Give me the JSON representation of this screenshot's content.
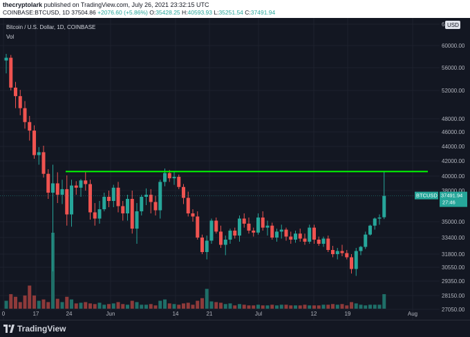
{
  "header": {
    "publisher": "thecryptolark",
    "published_text": "published on TradingView.com, July 26, 2021 23:32:15 UTC",
    "symbol": "COINBASE:BTCUSD,",
    "interval": "1D",
    "last": "37504.86",
    "change": "+2076.60 (+5.86%)",
    "o_label": "O:",
    "o_value": "35428.25",
    "h_label": "H:",
    "h_value": "40593.93",
    "l_label": "L:",
    "l_value": "35251.54",
    "c_label": "C:",
    "c_value": "37491.94"
  },
  "legend": {
    "title": "Bitcoin / U.S. Dollar, 1D, COINBASE",
    "vol_label": "Vol"
  },
  "currency_button": "USD",
  "price_tag": {
    "symbol": "BTCUSD",
    "price": "37491.94",
    "countdown": "27:46"
  },
  "footer": {
    "brand": "TradingView"
  },
  "colors": {
    "up": "#26a69a",
    "down": "#ef5350",
    "resistance": "#00ff00",
    "background": "#131722",
    "grid": "#1e222d"
  },
  "chart_data": {
    "type": "candlestick",
    "y_axis_ticks": [
      64000,
      60000,
      56000,
      52000,
      48000,
      46000,
      44000,
      42000,
      40000,
      38000,
      35000,
      33400,
      31800,
      30550,
      29350,
      28150,
      27050
    ],
    "y_axis_labels": [
      "64000.00",
      "60000.00",
      "56000.00",
      "52000.00",
      "48000.00",
      "46000.00",
      "44000.00",
      "42000.00",
      "40000.00",
      "38000.00",
      "35000.00",
      "33400.00",
      "31800.00",
      "30550.00",
      "29350.00",
      "28150.00",
      "27050.00"
    ],
    "x_axis_labels": [
      "0",
      "17",
      "24",
      "Jun",
      "14",
      "21",
      "Jul",
      "12",
      "19",
      "Aug"
    ],
    "resistance_level": 40600,
    "last_price": 37491.94,
    "candles": [
      [
        57300,
        58500,
        55000,
        57800
      ],
      [
        57800,
        58300,
        52000,
        52500
      ],
      [
        52500,
        53500,
        49500,
        51200
      ],
      [
        51200,
        52100,
        48500,
        49500
      ],
      [
        49500,
        50500,
        46500,
        47500
      ],
      [
        47500,
        48400,
        44800,
        46200
      ],
      [
        46200,
        47000,
        42300,
        42800
      ],
      [
        42800,
        43900,
        41500,
        43200
      ],
      [
        43200,
        44100,
        39800,
        40300
      ],
      [
        40300,
        40900,
        37200,
        37800
      ],
      [
        37800,
        41500,
        30200,
        39000
      ],
      [
        39000,
        40500,
        36800,
        37600
      ],
      [
        37600,
        39500,
        36700,
        38200
      ],
      [
        38200,
        40100,
        34600,
        35700
      ],
      [
        35700,
        39500,
        34500,
        38700
      ],
      [
        38700,
        39300,
        37600,
        38400
      ],
      [
        38400,
        39600,
        37400,
        39400
      ],
      [
        39400,
        40500,
        38000,
        38900
      ],
      [
        38900,
        39500,
        35200,
        35900
      ],
      [
        35900,
        36800,
        34600,
        35300
      ],
      [
        35300,
        37000,
        34800,
        36200
      ],
      [
        36200,
        37800,
        36000,
        37400
      ],
      [
        37400,
        38000,
        36400,
        37000
      ],
      [
        37000,
        38800,
        36400,
        38400
      ],
      [
        38400,
        39200,
        35900,
        36500
      ],
      [
        36500,
        37000,
        35100,
        35800
      ],
      [
        35800,
        37600,
        35100,
        37200
      ],
      [
        37200,
        38000,
        33800,
        34300
      ],
      [
        34300,
        36800,
        32800,
        36000
      ],
      [
        36000,
        37600,
        35600,
        37400
      ],
      [
        37400,
        38300,
        36600,
        37600
      ],
      [
        37600,
        38200,
        35800,
        36900
      ],
      [
        36900,
        37500,
        35600,
        36100
      ],
      [
        36100,
        39500,
        35300,
        39200
      ],
      [
        39200,
        41000,
        38600,
        40400
      ],
      [
        40400,
        40800,
        39200,
        39700
      ],
      [
        39700,
        40600,
        38800,
        39900
      ],
      [
        39900,
        40200,
        38200,
        38500
      ],
      [
        38500,
        38900,
        36700,
        37300
      ],
      [
        37300,
        37900,
        35500,
        35800
      ],
      [
        35800,
        36200,
        35000,
        35500
      ],
      [
        35500,
        36000,
        33200,
        33400
      ],
      [
        33400,
        33700,
        31800,
        32000
      ],
      [
        32000,
        33600,
        31300,
        33100
      ],
      [
        33100,
        35300,
        32800,
        35100
      ],
      [
        35100,
        35400,
        33800,
        34000
      ],
      [
        34000,
        34600,
        32400,
        32700
      ],
      [
        32700,
        33600,
        31700,
        33200
      ],
      [
        33200,
        34300,
        32800,
        34100
      ],
      [
        34100,
        34400,
        33300,
        33600
      ],
      [
        33600,
        35600,
        33000,
        35300
      ],
      [
        35300,
        35800,
        34400,
        34800
      ],
      [
        34800,
        35400,
        33800,
        34100
      ],
      [
        34100,
        34400,
        33500,
        33900
      ],
      [
        33900,
        35800,
        33700,
        35400
      ],
      [
        35400,
        36000,
        34100,
        34400
      ],
      [
        34400,
        35100,
        33600,
        34600
      ],
      [
        34600,
        34900,
        33200,
        33400
      ],
      [
        33400,
        34300,
        33000,
        34000
      ],
      [
        34000,
        34700,
        33300,
        34200
      ],
      [
        34200,
        34400,
        33100,
        33500
      ],
      [
        33500,
        34000,
        32800,
        33200
      ],
      [
        33200,
        34100,
        32900,
        33800
      ],
      [
        33800,
        34300,
        33000,
        33300
      ],
      [
        33300,
        33800,
        32700,
        33000
      ],
      [
        33000,
        34700,
        32800,
        34400
      ],
      [
        34400,
        34700,
        32800,
        33200
      ],
      [
        33200,
        33500,
        32600,
        32800
      ],
      [
        32800,
        33500,
        32500,
        33300
      ],
      [
        33300,
        33600,
        32000,
        32200
      ],
      [
        32200,
        32600,
        31500,
        31800
      ],
      [
        31800,
        32400,
        31300,
        32100
      ],
      [
        32100,
        32700,
        31600,
        31900
      ],
      [
        31900,
        32200,
        31300,
        31500
      ],
      [
        31500,
        31800,
        30000,
        30400
      ],
      [
        30400,
        32400,
        29800,
        32100
      ],
      [
        32100,
        32600,
        31700,
        32500
      ],
      [
        32500,
        34000,
        32300,
        33700
      ],
      [
        33700,
        34700,
        33600,
        34600
      ],
      [
        34600,
        35400,
        34200,
        35300
      ],
      [
        35300,
        35700,
        34700,
        35400
      ],
      [
        35428.25,
        40593.93,
        35251.54,
        37491.94
      ]
    ],
    "volume": [
      12,
      22,
      18,
      10,
      20,
      35,
      20,
      12,
      14,
      10,
      115,
      15,
      10,
      18,
      14,
      8,
      9,
      10,
      8,
      7,
      9,
      6,
      7,
      8,
      10,
      7,
      6,
      12,
      10,
      6,
      6,
      7,
      5,
      12,
      14,
      8,
      7,
      6,
      8,
      9,
      6,
      12,
      16,
      30,
      11,
      10,
      9,
      7,
      8,
      5,
      7,
      6,
      5,
      5,
      6,
      5,
      5,
      6,
      5,
      6,
      6,
      5,
      5,
      5,
      6,
      5,
      5,
      5,
      6,
      6,
      7,
      6,
      7,
      5,
      10,
      8,
      6,
      5,
      6,
      6,
      6,
      22
    ]
  }
}
